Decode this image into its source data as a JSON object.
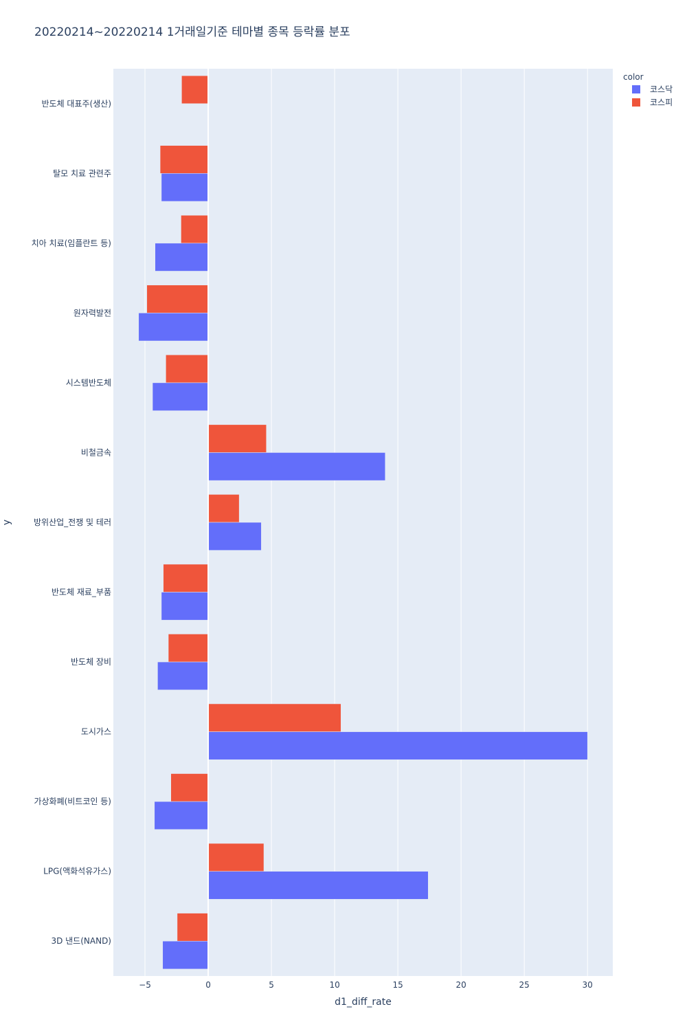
{
  "chart_data": {
    "type": "bar",
    "orientation": "horizontal",
    "barmode": "group",
    "title": "20220214~20220214 1거래일기준 테마별 종목 등락률 분포",
    "xlabel": "d1_diff_rate",
    "ylabel": "y",
    "xlim": [
      -7.5,
      32
    ],
    "x_ticks": [
      -5,
      0,
      5,
      10,
      15,
      20,
      25,
      30
    ],
    "x_tick_labels": [
      "−5",
      "0",
      "5",
      "10",
      "15",
      "20",
      "25",
      "30"
    ],
    "grid": true,
    "background_color": "#E5ECF6",
    "legend_title": "color",
    "legend_position": "top-right",
    "categories": [
      "반도체 대표주(생산)",
      "탈모 치료 관련주",
      "치아 치료(임플란트 등)",
      "원자력발전",
      "시스템반도체",
      "비철금속",
      "방위산업_전쟁 및 테러",
      "반도체 재료_부품",
      "반도체 장비",
      "도시가스",
      "가상화폐(비트코인 등)",
      "LPG(액화석유가스)",
      "3D 낸드(NAND)"
    ],
    "series": [
      {
        "name": "코스닥",
        "color": "#636EFA",
        "values": [
          null,
          -3.7,
          -4.2,
          -5.5,
          -4.4,
          14.0,
          4.2,
          -3.7,
          -4.0,
          30.0,
          -4.25,
          17.4,
          -3.6
        ]
      },
      {
        "name": "코스피",
        "color": "#EF553B",
        "values": [
          -2.1,
          -3.8,
          -2.15,
          -4.85,
          -3.35,
          4.6,
          2.45,
          -3.55,
          -3.15,
          10.5,
          -2.95,
          4.4,
          -2.45
        ]
      }
    ]
  }
}
